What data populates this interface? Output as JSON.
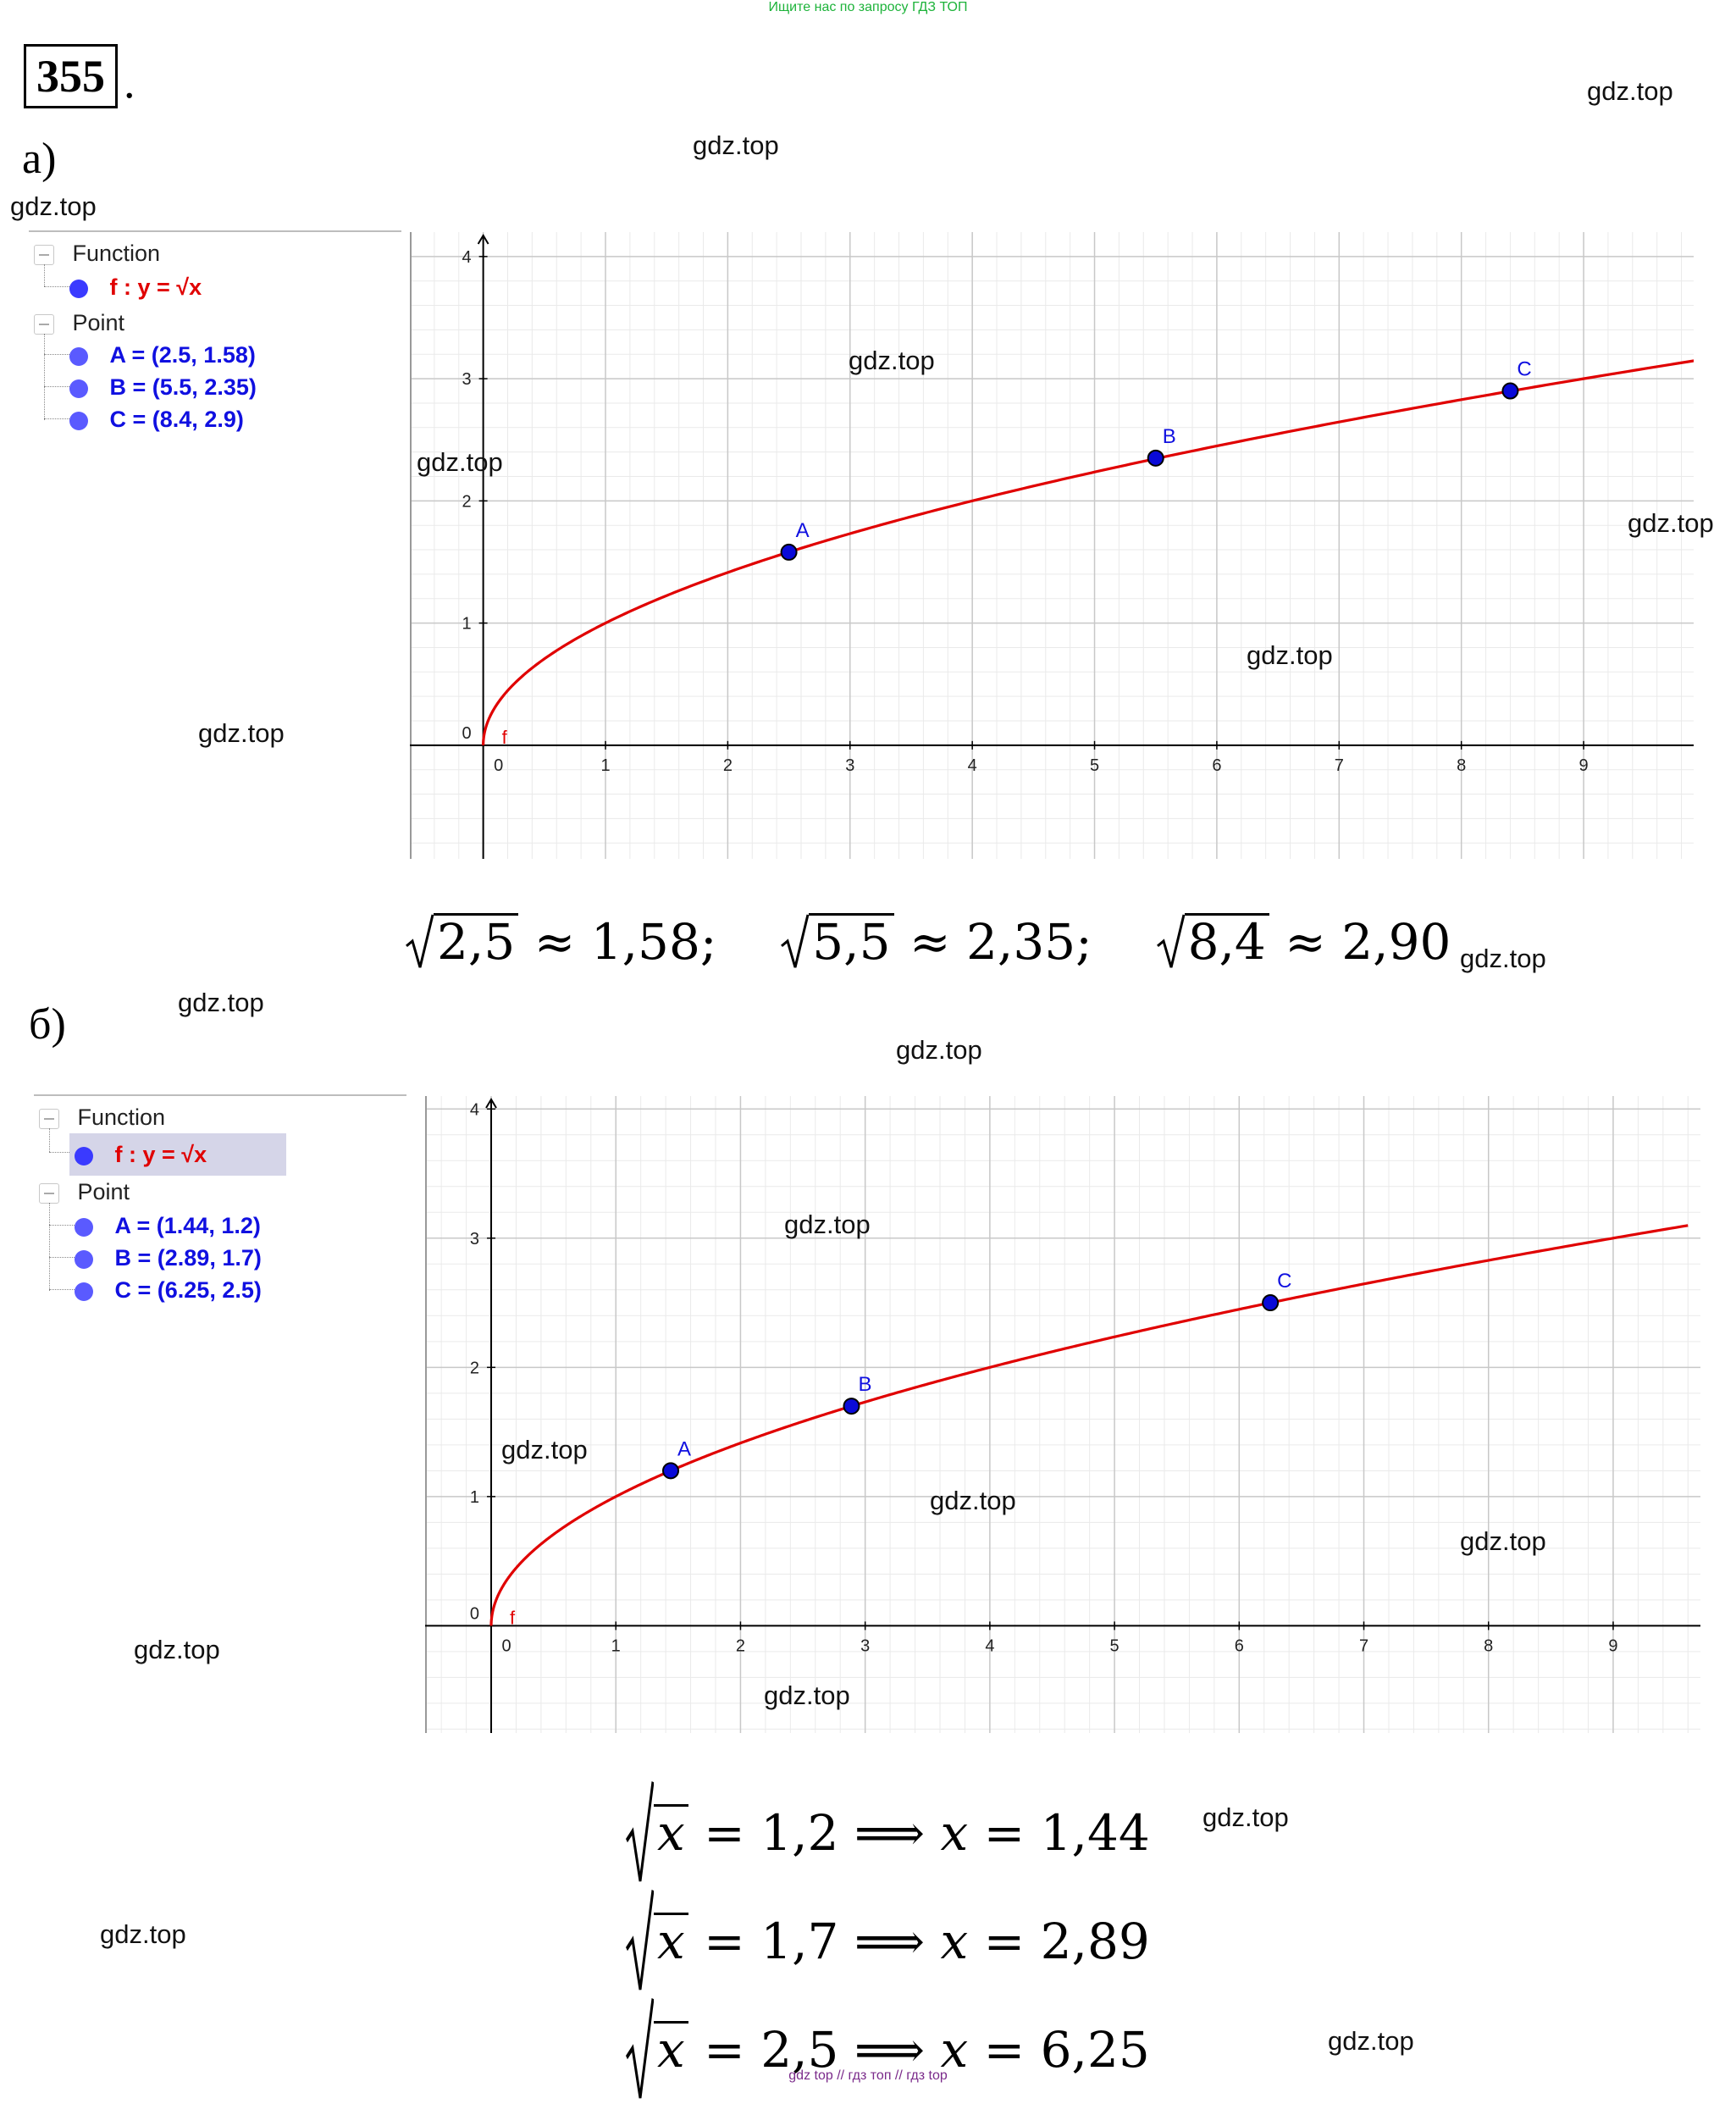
{
  "banner": "Ищите нас по запросу ГДЗ ТОП",
  "task_number": "355",
  "task_dot": ".",
  "watermark": "gdz.top",
  "footer": "gdz top  //  гдз топ  //  гдз top",
  "part_a": {
    "label": "а)",
    "algebra": {
      "function_header": "Function",
      "function_text": "f : y = √x",
      "point_header": "Point",
      "points": [
        "A = (2.5, 1.58)",
        "B = (5.5, 2.35)",
        "C = (8.4, 2.9)"
      ]
    },
    "equations": [
      {
        "arg": "2,5",
        "rhs": "≈ 1,58;"
      },
      {
        "arg": "5,5",
        "rhs": "≈ 2,35;"
      },
      {
        "arg": "8,4",
        "rhs": "≈ 2,90"
      }
    ]
  },
  "part_b": {
    "label": "б)",
    "algebra": {
      "function_header": "Function",
      "function_text": "f : y = √x",
      "point_header": "Point",
      "points": [
        "A = (1.44, 1.2)",
        "B = (2.89, 1.7)",
        "C = (6.25, 2.5)"
      ]
    },
    "equations": [
      {
        "lhs": "x",
        "mid": "= 1,2 ⟹",
        "var": "x",
        "rhs": "= 1,44"
      },
      {
        "lhs": "x",
        "mid": "= 1,7 ⟹",
        "var": "x",
        "rhs": "= 2,89"
      },
      {
        "lhs": "x",
        "mid": "= 2,5 ⟹",
        "var": "x",
        "rhs": "= 6,25"
      }
    ]
  },
  "colors": {
    "curve": "#e00000",
    "point": "#0a0ad8",
    "grid_major": "#c8c8c8",
    "grid_minor": "#eaeaea",
    "label_blue": "#1010e0"
  },
  "chart_data": [
    {
      "type": "line",
      "function": "y = sqrt(x)",
      "curve_label": "f",
      "series": [
        {
          "name": "f",
          "x": [
            0,
            1,
            2,
            3,
            4,
            5,
            6,
            7,
            8,
            9,
            10
          ],
          "y": [
            0,
            1,
            1.41,
            1.73,
            2,
            2.24,
            2.45,
            2.65,
            2.83,
            3,
            3.16
          ]
        }
      ],
      "points": [
        {
          "name": "A",
          "x": 2.5,
          "y": 1.58
        },
        {
          "name": "B",
          "x": 5.5,
          "y": 2.35
        },
        {
          "name": "C",
          "x": 8.4,
          "y": 2.9
        }
      ],
      "xticks": [
        "0",
        "1",
        "2",
        "3",
        "4",
        "5",
        "6",
        "7",
        "8",
        "9"
      ],
      "yticks": [
        "0",
        "1",
        "2",
        "3",
        "4"
      ],
      "xlim": [
        -0.6,
        9.9
      ],
      "ylim": [
        -0.93,
        4.2
      ],
      "grid": true
    },
    {
      "type": "line",
      "function": "y = sqrt(x)",
      "curve_label": "f",
      "series": [
        {
          "name": "f",
          "x": [
            0,
            1,
            2,
            3,
            4,
            5,
            6,
            7,
            8,
            9,
            9.6
          ],
          "y": [
            0,
            1,
            1.41,
            1.73,
            2,
            2.24,
            2.45,
            2.65,
            2.83,
            3,
            3.1
          ]
        }
      ],
      "points": [
        {
          "name": "A",
          "x": 1.44,
          "y": 1.2
        },
        {
          "name": "B",
          "x": 2.89,
          "y": 1.7
        },
        {
          "name": "C",
          "x": 6.25,
          "y": 2.5
        }
      ],
      "xticks": [
        "0",
        "1",
        "2",
        "3",
        "4",
        "5",
        "6",
        "7",
        "8",
        "9"
      ],
      "yticks": [
        "0",
        "1",
        "2",
        "3",
        "4"
      ],
      "xlim": [
        -0.53,
        9.7
      ],
      "ylim": [
        -0.83,
        4.1
      ],
      "grid": true
    }
  ]
}
